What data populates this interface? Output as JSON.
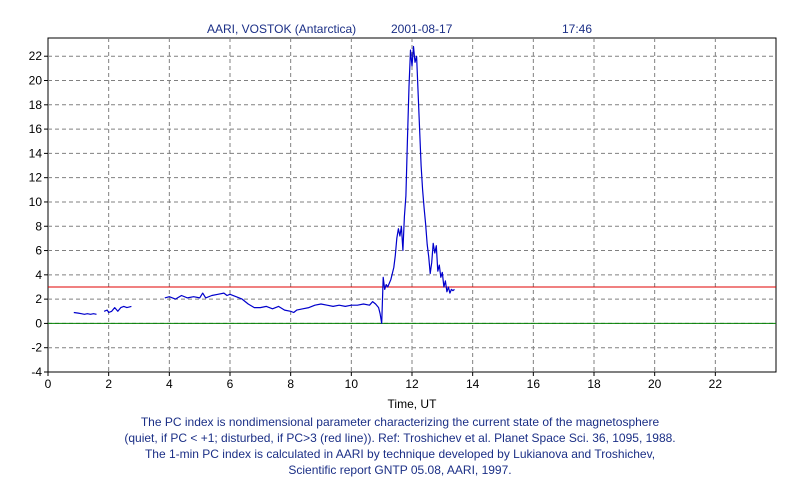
{
  "header": {
    "station": "AARI, VOSTOK (Antarctica)",
    "date": "2001-08-17",
    "time": "17:46"
  },
  "caption": [
    "The PC index is nondimensional parameter characterizing the current state of the magnetosphere",
    "(quiet, if PC < +1; disturbed, if PC>3 (red line)).  Ref: Troshichev et al. Planet Space Sci. 36, 1095, 1988.",
    "The 1-min PC index is calculated in AARI by technique developed by Lukianova and Troshichev,",
    "Scientific report GNTP 05.08, AARI, 1997."
  ],
  "colors": {
    "series": "#0000cc",
    "threshold": "#e00000",
    "zero_line": "#008000",
    "grid": "#808080",
    "text": "#1b2f86"
  },
  "chart_data": {
    "type": "line",
    "title": "AARI, VOSTOK (Antarctica)    2001-08-17    17:46",
    "xlabel": "Time, UT",
    "ylabel": "",
    "xlim": [
      0,
      24
    ],
    "ylim": [
      -4,
      23.5
    ],
    "x_ticks": [
      0,
      2,
      4,
      6,
      8,
      10,
      12,
      14,
      16,
      18,
      20,
      22
    ],
    "y_ticks": [
      -4,
      -2,
      0,
      2,
      4,
      6,
      8,
      10,
      12,
      14,
      16,
      18,
      20,
      22
    ],
    "grid": true,
    "reference_lines": [
      {
        "y": 3,
        "color": "#e00000"
      },
      {
        "y": 0,
        "color": "#008000"
      }
    ],
    "series": [
      {
        "name": "",
        "segments": [
          {
            "x": [
              0.85,
              1.0,
              1.1,
              1.2,
              1.3,
              1.4,
              1.5,
              1.6
            ],
            "y": [
              0.9,
              0.85,
              0.8,
              0.75,
              0.8,
              0.75,
              0.8,
              0.75
            ]
          },
          {
            "x": [
              1.85,
              1.95,
              2.0,
              2.1,
              2.2,
              2.3,
              2.4,
              2.5,
              2.6,
              2.75
            ],
            "y": [
              1.0,
              1.1,
              0.9,
              1.0,
              1.3,
              1.0,
              1.3,
              1.4,
              1.3,
              1.4
            ]
          },
          {
            "x": [
              3.85,
              4.0,
              4.2,
              4.4,
              4.6,
              4.8,
              5.0,
              5.1,
              5.2,
              5.4,
              5.6,
              5.8,
              5.9,
              6.0,
              6.2,
              6.4,
              6.6,
              6.8,
              7.0,
              7.2,
              7.4,
              7.6,
              7.8,
              8.0,
              8.1,
              8.2,
              8.4,
              8.6,
              8.8,
              9.0,
              9.2,
              9.4,
              9.6,
              9.8,
              10.0,
              10.2,
              10.4,
              10.6,
              10.7,
              10.8,
              10.9,
              10.95,
              11.0,
              11.05,
              11.1,
              11.15,
              11.2,
              11.3,
              11.4,
              11.45,
              11.5,
              11.55,
              11.6,
              11.65,
              11.7,
              11.75,
              11.8,
              11.85,
              11.9,
              11.95,
              12.0,
              12.05,
              12.1,
              12.15,
              12.2,
              12.25,
              12.3,
              12.35,
              12.4,
              12.45,
              12.5,
              12.55,
              12.6,
              12.65,
              12.7,
              12.75,
              12.8,
              12.85,
              12.9,
              12.95,
              13.0,
              13.05,
              13.1,
              13.15,
              13.2,
              13.25,
              13.3,
              13.35,
              13.4
            ],
            "y": [
              2.1,
              2.2,
              2.0,
              2.3,
              2.1,
              2.2,
              2.1,
              2.5,
              2.1,
              2.3,
              2.4,
              2.5,
              2.3,
              2.4,
              2.2,
              2.0,
              1.6,
              1.3,
              1.3,
              1.4,
              1.2,
              1.4,
              1.1,
              1.0,
              0.9,
              1.1,
              1.2,
              1.3,
              1.5,
              1.6,
              1.5,
              1.4,
              1.5,
              1.4,
              1.5,
              1.5,
              1.6,
              1.5,
              1.8,
              1.6,
              1.3,
              0.8,
              0.0,
              3.8,
              2.8,
              3.2,
              3.0,
              3.6,
              4.6,
              5.6,
              7.0,
              7.8,
              7.2,
              8.0,
              6.0,
              8.8,
              10.5,
              15.0,
              19.5,
              22.5,
              21.2,
              22.8,
              21.5,
              22.0,
              19.0,
              16.0,
              13.0,
              11.0,
              9.5,
              8.2,
              6.5,
              5.5,
              4.1,
              5.0,
              6.6,
              5.8,
              6.4,
              4.3,
              4.8,
              3.8,
              4.2,
              3.0,
              3.5,
              2.6,
              3.0,
              2.5,
              2.8,
              2.7,
              2.8
            ]
          }
        ]
      }
    ]
  }
}
